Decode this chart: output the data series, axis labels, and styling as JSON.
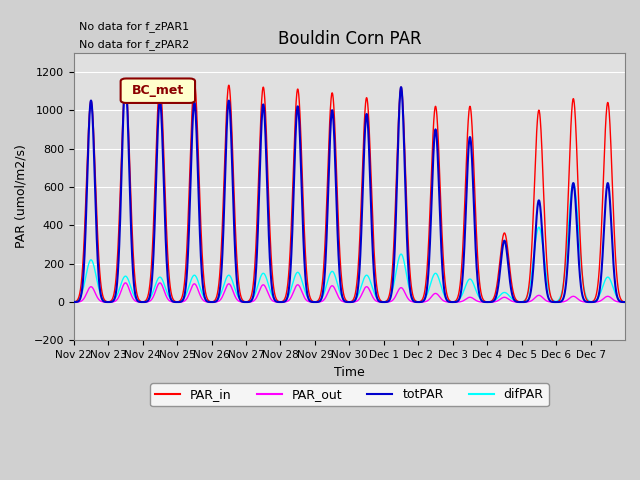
{
  "title": "Bouldin Corn PAR",
  "ylabel": "PAR (umol/m2/s)",
  "xlabel": "Time",
  "ylim": [
    -200,
    1300
  ],
  "yticks": [
    -200,
    0,
    200,
    400,
    600,
    800,
    1000,
    1200
  ],
  "no_data_text": [
    "No data for f_zPAR1",
    "No data for f_zPAR2"
  ],
  "legend_label": "BC_met",
  "legend_bg": "#ffffcc",
  "legend_border": "#8b0000",
  "line_colors": {
    "PAR_in": "#ff0000",
    "PAR_out": "#ff00ff",
    "totPAR": "#0000cc",
    "difPAR": "#00ffff"
  },
  "num_days": 16,
  "xtick_labels": [
    "Nov 22",
    "Nov 23",
    "Nov 24",
    "Nov 25",
    "Nov 26",
    "Nov 27",
    "Nov 28",
    "Nov 29",
    "Nov 30",
    "Dec 1",
    "Dec 2",
    "Dec 3",
    "Dec 4",
    "Dec 5",
    "Dec 6",
    "Dec 7"
  ],
  "peak_heights_PAR_in": [
    1050,
    1140,
    1130,
    1140,
    1130,
    1120,
    1110,
    1090,
    1065,
    1120,
    1020,
    1020,
    360,
    1000,
    1060,
    1040
  ],
  "peak_heights_totPAR": [
    1050,
    1140,
    1050,
    1040,
    1050,
    1030,
    1020,
    1000,
    980,
    1120,
    900,
    860,
    320,
    530,
    620,
    620
  ],
  "peak_heights_PAR_out": [
    80,
    100,
    100,
    95,
    95,
    90,
    90,
    85,
    80,
    75,
    45,
    25,
    25,
    35,
    30,
    30
  ],
  "peak_heights_difPAR": [
    220,
    135,
    130,
    140,
    140,
    150,
    155,
    160,
    140,
    250,
    150,
    120,
    50,
    390,
    620,
    130
  ],
  "line_widths": {
    "PAR_in": 1.0,
    "PAR_out": 1.0,
    "totPAR": 1.5,
    "difPAR": 1.0
  },
  "figsize": [
    6.4,
    4.8
  ],
  "dpi": 100
}
